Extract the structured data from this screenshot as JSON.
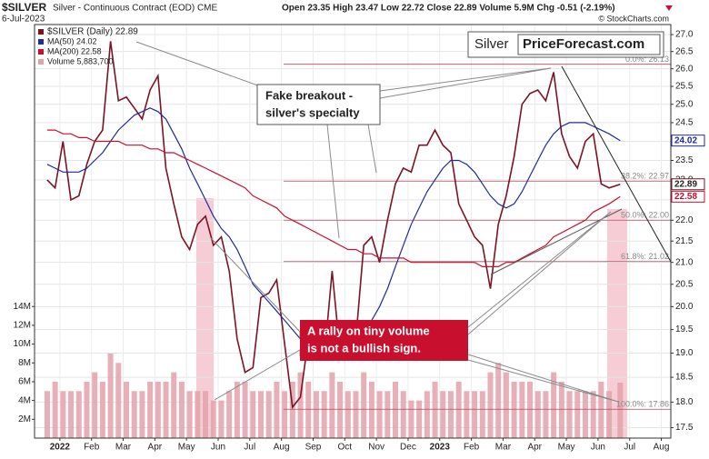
{
  "chart_data": {
    "type": "line",
    "title": "$SILVER",
    "subtitle": "Silver - Continuous Contract (EOD) CME",
    "date": "6-Jul-2023",
    "quote": "Open 23.35 High 23.47 Low 22.72 Close 22.89 Volume 5.9M Chg -0.51 (-2.19%)",
    "credit": "© StockCharts.com",
    "logo": [
      "Silver",
      "PriceForecast.com"
    ],
    "log_scale": true,
    "grid": true,
    "legend": "top-left",
    "x": [
      0.1,
      0.35,
      0.6,
      0.85,
      1.1,
      1.35,
      1.6,
      1.85,
      2.1,
      2.35,
      2.6,
      2.85,
      3.1,
      3.35,
      3.6,
      3.85,
      4.1,
      4.35,
      4.6,
      4.85,
      5.1,
      5.35,
      5.6,
      5.85,
      6.1,
      6.35,
      6.6,
      6.85,
      7.1,
      7.35,
      7.6,
      7.85,
      8.1,
      8.35,
      8.6,
      8.85,
      9.1,
      9.35,
      9.6,
      9.85,
      10.1,
      10.35,
      10.6,
      10.85,
      11.1,
      11.35,
      11.6,
      11.85,
      12.1,
      12.35,
      12.6,
      12.85,
      13.1,
      13.35,
      13.6,
      13.85,
      14.1,
      14.35,
      14.6,
      14.85,
      15.1,
      15.35,
      15.6,
      15.85,
      16.1,
      16.35,
      16.6,
      16.85,
      17.1,
      17.35,
      17.6,
      17.85,
      18.2
    ],
    "xlim": [
      -0.3,
      19.8
    ],
    "xticks": [
      {
        "value": 0.5,
        "label": "2022"
      },
      {
        "value": 1.5,
        "label": "Feb"
      },
      {
        "value": 2.5,
        "label": "Mar"
      },
      {
        "value": 3.5,
        "label": "Apr"
      },
      {
        "value": 4.5,
        "label": "May"
      },
      {
        "value": 5.5,
        "label": "Jun"
      },
      {
        "value": 6.5,
        "label": "Jul"
      },
      {
        "value": 7.5,
        "label": "Aug"
      },
      {
        "value": 8.5,
        "label": "Sep"
      },
      {
        "value": 9.5,
        "label": "Oct"
      },
      {
        "value": 10.5,
        "label": "Nov"
      },
      {
        "value": 11.5,
        "label": "Dec"
      },
      {
        "value": 12.5,
        "label": "2023"
      },
      {
        "value": 13.5,
        "label": "Feb"
      },
      {
        "value": 14.5,
        "label": "Mar"
      },
      {
        "value": 15.5,
        "label": "Apr"
      },
      {
        "value": 16.5,
        "label": "May"
      },
      {
        "value": 17.5,
        "label": "Jun"
      },
      {
        "value": 18.5,
        "label": "Jul"
      },
      {
        "value": 19.5,
        "label": "Aug"
      }
    ],
    "ylim": [
      17.3,
      27.3
    ],
    "yticks": [
      17.5,
      {
        "value": 18,
        "label": "18.0"
      },
      18.5,
      {
        "value": 19,
        "label": "19.0"
      },
      19.5,
      {
        "value": 20,
        "label": "20.0"
      },
      20.5,
      {
        "value": 21,
        "label": "21.0"
      },
      21.5,
      {
        "value": 22,
        "label": "22.0"
      },
      22.5,
      {
        "value": 23,
        "label": "23.0"
      },
      23.5,
      {
        "value": 24,
        "label": "24.0"
      },
      24.5,
      {
        "value": 25,
        "label": "25.0"
      },
      25.5,
      {
        "value": 26,
        "label": "26.0"
      },
      26.5,
      {
        "value": 27,
        "label": "27.0"
      }
    ],
    "series": [
      {
        "name": "$SILVER (Daily) 22.89",
        "color": "#7a1424",
        "values": [
          23.0,
          22.8,
          24.0,
          22.5,
          22.6,
          23.4,
          24.0,
          24.3,
          26.8,
          25.1,
          25.2,
          24.9,
          24.6,
          25.4,
          25.8,
          23.3,
          22.4,
          21.6,
          21.3,
          21.9,
          22.1,
          21.4,
          21.6,
          20.8,
          19.3,
          18.6,
          18.7,
          20.2,
          20.3,
          20.6,
          19.2,
          17.9,
          18.1,
          19.3,
          19.0,
          18.9,
          20.8,
          19.0,
          19.0,
          19.3,
          21.4,
          21.6,
          21.0,
          22.0,
          22.9,
          23.3,
          23.2,
          23.9,
          23.9,
          24.3,
          23.9,
          23.7,
          22.4,
          22.0,
          21.6,
          21.4,
          20.4,
          21.9,
          22.6,
          23.6,
          25.0,
          25.3,
          25.4,
          25.1,
          25.9,
          24.2,
          23.6,
          23.3,
          24.0,
          24.2,
          22.9,
          22.8,
          22.89
        ]
      },
      {
        "name": "MA(50) 24.02",
        "color": "#1f2a9b",
        "values": [
          23.4,
          23.3,
          23.2,
          23.2,
          23.2,
          23.3,
          23.5,
          23.7,
          24.0,
          24.3,
          24.5,
          24.7,
          24.8,
          24.9,
          24.8,
          24.6,
          24.2,
          23.8,
          23.3,
          22.9,
          22.5,
          22.1,
          21.8,
          21.6,
          21.3,
          20.9,
          20.5,
          20.3,
          20.1,
          19.9,
          19.7,
          19.5,
          19.3,
          19.2,
          19.1,
          19.0,
          19.0,
          19.1,
          19.2,
          19.2,
          19.4,
          19.7,
          20.0,
          20.4,
          20.9,
          21.4,
          21.9,
          22.3,
          22.7,
          23.0,
          23.3,
          23.5,
          23.5,
          23.4,
          23.2,
          22.9,
          22.6,
          22.4,
          22.3,
          22.4,
          22.7,
          23.1,
          23.5,
          23.9,
          24.2,
          24.4,
          24.5,
          24.5,
          24.5,
          24.4,
          24.3,
          24.2,
          24.02
        ]
      },
      {
        "name": "MA(200) 22.58",
        "color": "#c8102e",
        "values": [
          24.3,
          24.3,
          24.2,
          24.2,
          24.1,
          24.1,
          24.0,
          24.0,
          24.0,
          24.0,
          23.9,
          23.9,
          23.9,
          23.8,
          23.8,
          23.7,
          23.7,
          23.6,
          23.5,
          23.4,
          23.3,
          23.2,
          23.1,
          23.0,
          22.9,
          22.8,
          22.6,
          22.5,
          22.4,
          22.3,
          22.1,
          22.0,
          21.9,
          21.8,
          21.7,
          21.6,
          21.5,
          21.4,
          21.3,
          21.3,
          21.2,
          21.2,
          21.1,
          21.1,
          21.1,
          21.1,
          21.0,
          21.0,
          21.0,
          21.0,
          21.0,
          21.0,
          21.0,
          21.0,
          21.0,
          20.9,
          20.9,
          20.9,
          21.0,
          21.0,
          21.1,
          21.2,
          21.3,
          21.4,
          21.6,
          21.7,
          21.8,
          21.9,
          22.0,
          22.2,
          22.3,
          22.4,
          22.58
        ]
      }
    ],
    "volume": {
      "name": "Volume 5,883,700",
      "color": "#e3a1aa",
      "values": [
        5,
        6,
        5,
        5,
        5,
        6,
        7,
        6,
        9,
        8,
        6,
        5,
        5,
        6,
        6,
        6,
        7,
        6,
        5,
        5,
        5,
        4,
        4,
        5,
        6,
        6,
        5,
        5,
        5,
        6,
        5,
        6,
        7,
        6,
        5,
        5,
        7,
        6,
        5,
        5,
        7,
        6,
        5,
        5,
        6,
        5,
        4,
        4,
        5,
        6,
        5,
        5,
        6,
        5,
        5,
        5,
        7,
        8,
        7,
        6,
        6,
        6,
        5,
        5,
        7,
        6,
        5,
        5,
        5,
        5,
        6,
        5,
        5.9
      ],
      "ylim": [
        0,
        44
      ],
      "yticks": [
        {
          "value": 2,
          "label": "2M"
        },
        {
          "value": 4,
          "label": "4M"
        },
        {
          "value": 6,
          "label": "6M"
        },
        {
          "value": 8,
          "label": "8M"
        },
        {
          "value": 10,
          "label": "10M"
        },
        {
          "value": 12,
          "label": "12M"
        },
        {
          "value": 14,
          "label": "14M"
        }
      ]
    },
    "fib_levels": [
      {
        "label": "0.0%: 26.13",
        "value": 26.13
      },
      {
        "label": "38.2%: 22.97",
        "value": 22.97
      },
      {
        "label": "50.0%: 22.00",
        "value": 22.0
      },
      {
        "label": "61.8%: 21.02",
        "value": 21.02
      },
      {
        "label": "100.0%: 17.86",
        "value": 17.86
      }
    ],
    "annotations": [
      {
        "lines": [
          "Fake breakout -",
          "silver's specialty"
        ]
      },
      {
        "lines": [
          "A rally on tiny volume",
          "is not a bullish sign."
        ]
      }
    ]
  }
}
